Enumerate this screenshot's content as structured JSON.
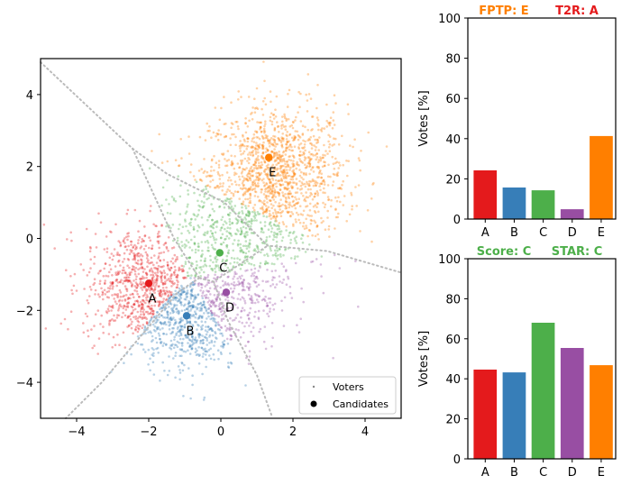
{
  "chart_data": [
    {
      "type": "scatter",
      "title": "",
      "xlabel": "",
      "ylabel": "",
      "xlim": [
        -5,
        5
      ],
      "ylim": [
        -5,
        5
      ],
      "xticks": [
        "−4",
        "−2",
        "0",
        "2",
        "4"
      ],
      "xtick_values": [
        -4,
        -2,
        0,
        2,
        4
      ],
      "yticks": [
        "−4",
        "−2",
        "0",
        "2",
        "4"
      ],
      "ytick_values": [
        -4,
        -2,
        0,
        2,
        4
      ],
      "grid": false,
      "legend": {
        "placement": "lower-right",
        "entries": [
          "Voters",
          "Candidates"
        ]
      },
      "candidates": [
        {
          "name": "A",
          "x": -2.0,
          "y": -1.25,
          "color": "#e41a1c"
        },
        {
          "name": "B",
          "x": -0.95,
          "y": -2.15,
          "color": "#377eb8"
        },
        {
          "name": "C",
          "x": -0.03,
          "y": -0.4,
          "color": "#4daf4a"
        },
        {
          "name": "D",
          "x": 0.15,
          "y": -1.5,
          "color": "#984ea3"
        },
        {
          "name": "E",
          "x": 1.33,
          "y": 2.25,
          "color": "#ff7f00"
        }
      ],
      "voter_clusters": [
        {
          "assigned_to": "E",
          "center": [
            1.6,
            1.8
          ],
          "spread": 0.95,
          "count": 1300
        },
        {
          "assigned_to": "A",
          "center": [
            -2.2,
            -1.3
          ],
          "spread": 0.8,
          "count": 800
        },
        {
          "assigned_to": "B",
          "center": [
            -0.9,
            -2.3
          ],
          "spread": 0.7,
          "count": 600
        },
        {
          "assigned_to": "C",
          "center": [
            0.3,
            0.0
          ],
          "spread": 1.1,
          "count": 600
        },
        {
          "assigned_to": "D",
          "center": [
            0.5,
            -1.6
          ],
          "spread": 0.7,
          "count": 200
        }
      ],
      "voronoi_boundaries": [
        [
          [
            -5,
            4.9
          ],
          [
            -2.45,
            2.5
          ],
          [
            -1.5,
            1.8
          ],
          [
            0.1,
            1.0
          ],
          [
            1.3,
            -0.2
          ],
          [
            2.95,
            -0.35
          ],
          [
            5,
            -0.95
          ]
        ],
        [
          [
            -2.45,
            2.5
          ],
          [
            -1.3,
            0.0
          ],
          [
            -0.6,
            -1.1
          ]
        ],
        [
          [
            -0.6,
            -1.1
          ],
          [
            -1.2,
            -1.5
          ],
          [
            -3.3,
            -4.0
          ],
          [
            -4.3,
            -5.0
          ]
        ],
        [
          [
            -0.6,
            -1.1
          ],
          [
            -0.2,
            -1.2
          ],
          [
            1.3,
            -0.2
          ]
        ],
        [
          [
            -0.2,
            -1.2
          ],
          [
            0.2,
            -2.3
          ],
          [
            1.0,
            -3.8
          ],
          [
            1.4,
            -4.9
          ]
        ]
      ]
    },
    {
      "type": "bar",
      "title_parts": [
        {
          "text": "FPTP: E",
          "color": "#ff7f00"
        },
        {
          "text": "T2R: A",
          "color": "#e41a1c"
        }
      ],
      "categories": [
        "A",
        "B",
        "C",
        "D",
        "E"
      ],
      "values": [
        24.2,
        15.7,
        14.3,
        4.9,
        41.3
      ],
      "colors": [
        "#e41a1c",
        "#377eb8",
        "#4daf4a",
        "#984ea3",
        "#ff7f00"
      ],
      "xlabel": "",
      "ylabel": "Votes [%]",
      "ylim": [
        0,
        100
      ],
      "yticks": [
        "0",
        "20",
        "40",
        "60",
        "80",
        "100"
      ],
      "ytick_values": [
        0,
        20,
        40,
        60,
        80,
        100
      ]
    },
    {
      "type": "bar",
      "title_parts": [
        {
          "text": "Score: C",
          "color": "#4daf4a"
        },
        {
          "text": "STAR: C",
          "color": "#4daf4a"
        }
      ],
      "categories": [
        "A",
        "B",
        "C",
        "D",
        "E"
      ],
      "values": [
        44.6,
        43.2,
        68.0,
        55.4,
        46.8
      ],
      "colors": [
        "#e41a1c",
        "#377eb8",
        "#4daf4a",
        "#984ea3",
        "#ff7f00"
      ],
      "xlabel": "",
      "ylabel": "Votes [%]",
      "ylim": [
        0,
        100
      ],
      "yticks": [
        "0",
        "20",
        "40",
        "60",
        "80",
        "100"
      ],
      "ytick_values": [
        0,
        20,
        40,
        60,
        80,
        100
      ]
    }
  ]
}
